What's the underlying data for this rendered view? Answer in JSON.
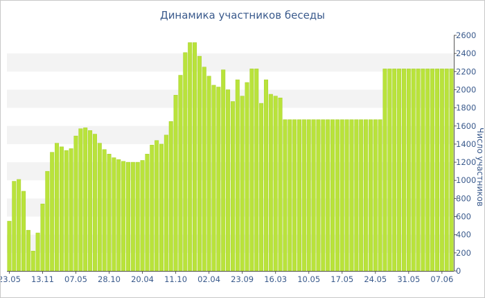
{
  "chart_data": {
    "type": "bar",
    "title": "Динамика участников беседы",
    "ylabel": "Число участников",
    "ylim": [
      0,
      2600
    ],
    "yticks": [
      0,
      200,
      400,
      600,
      800,
      1000,
      1200,
      1400,
      1600,
      1800,
      2000,
      2200,
      2400,
      2600
    ],
    "x_tick_labels": [
      "23.05",
      "13.11",
      "07.05",
      "28.10",
      "20.04",
      "11.10",
      "02.04",
      "23.09",
      "16.03",
      "10.05",
      "17.05",
      "24.05",
      "31.05",
      "07.06"
    ],
    "x_tick_positions": [
      0,
      7,
      14,
      21,
      28,
      35,
      42,
      49,
      56,
      63,
      70,
      77,
      84,
      91
    ],
    "grid": "horizontal-bands",
    "legend": "none",
    "colors": {
      "bar": "#b9e33b",
      "bar_edge": "#a6cf2a",
      "band": "#f3f3f3",
      "text": "#3a5a8c",
      "axis": "#555555"
    },
    "values": [
      550,
      990,
      1010,
      880,
      450,
      220,
      420,
      740,
      1100,
      1310,
      1410,
      1370,
      1330,
      1350,
      1490,
      1570,
      1580,
      1550,
      1510,
      1410,
      1340,
      1290,
      1250,
      1230,
      1210,
      1200,
      1200,
      1200,
      1220,
      1290,
      1390,
      1440,
      1400,
      1500,
      1650,
      1940,
      2160,
      2410,
      2520,
      2520,
      2370,
      2250,
      2150,
      2050,
      2030,
      2220,
      2000,
      1870,
      2110,
      1930,
      2080,
      2230,
      2230,
      1850,
      2110,
      1950,
      1930,
      1910,
      1670,
      1670,
      1670,
      1670,
      1670,
      1670,
      1670,
      1670,
      1670,
      1670,
      1670,
      1670,
      1670,
      1670,
      1670,
      1670,
      1670,
      1670,
      1670,
      1670,
      1670,
      2230,
      2230,
      2230,
      2230,
      2230,
      2230,
      2230,
      2230,
      2230,
      2230,
      2230,
      2230,
      2230,
      2230,
      2230
    ]
  }
}
